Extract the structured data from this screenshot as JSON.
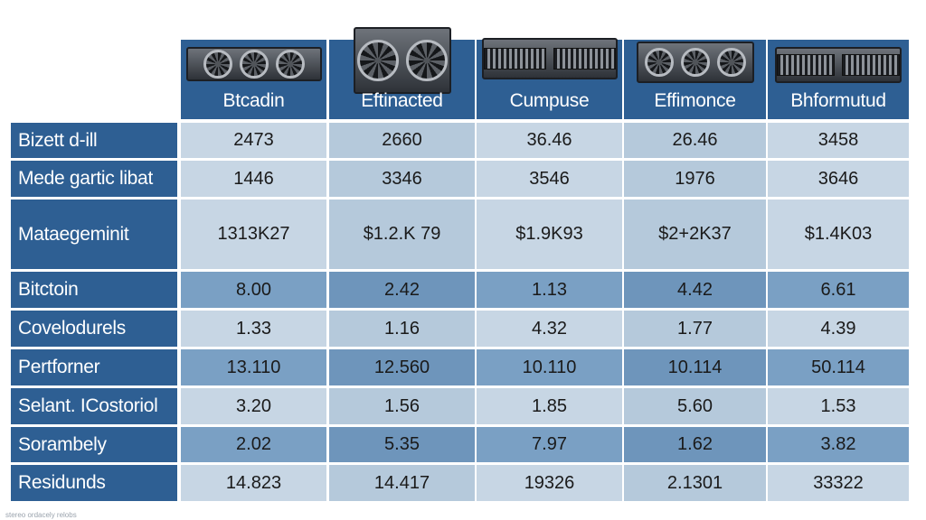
{
  "columns": [
    {
      "label": "Btcadin",
      "hardware": "server-rack-icon"
    },
    {
      "label": "Eftinacted",
      "hardware": "server-fan-icon"
    },
    {
      "label": "Cumpuse",
      "hardware": "server-rack-icon"
    },
    {
      "label": "Effimonce",
      "hardware": "server-fan-icon"
    },
    {
      "label": "Bhformutud",
      "hardware": "server-rack-icon"
    }
  ],
  "rows": [
    {
      "label": "Bizett d-ill",
      "values": [
        "2473",
        "2660",
        "36.46",
        "26.46",
        "3458"
      ]
    },
    {
      "label": "Mede gartic libat",
      "values": [
        "1446",
        "3346",
        "3546",
        "1976",
        "3646"
      ]
    },
    {
      "label": "Mataegeminit",
      "values": [
        "1313K27",
        "$1.2.K 79",
        "$1.9K93",
        "$2+2K37",
        "$1.4K03"
      ]
    },
    {
      "label": "Bitctoin",
      "values": [
        "8.00",
        "2.42",
        "1.13",
        "4.42",
        "6.61"
      ]
    },
    {
      "label": "Covelodurels",
      "values": [
        "1.33",
        "1.16",
        "4.32",
        "1.77",
        "4.39"
      ]
    },
    {
      "label": "Pertforner",
      "values": [
        "13.110",
        "12.560",
        "10.110",
        "10.114",
        "50.114"
      ]
    },
    {
      "label": "Selant. ICostoriol",
      "values": [
        "3.20",
        "1.56",
        "1.85",
        "5.60",
        "1.53"
      ]
    },
    {
      "label": "Sorambely",
      "values": [
        "2.02",
        "5.35",
        "7.97",
        "1.62",
        "3.82"
      ]
    },
    {
      "label": "Residunds",
      "values": [
        "14.823",
        "14.417",
        "19326",
        "2.1301",
        "33322"
      ]
    }
  ],
  "colors": {
    "header_bg": "#2e5f93",
    "row_light": "#b5c9db",
    "row_dark": "#6e95bb",
    "cell_light": "#c7d6e4",
    "cell_dark": "#7aa0c4"
  },
  "footer": "stereo ordacely relobs"
}
